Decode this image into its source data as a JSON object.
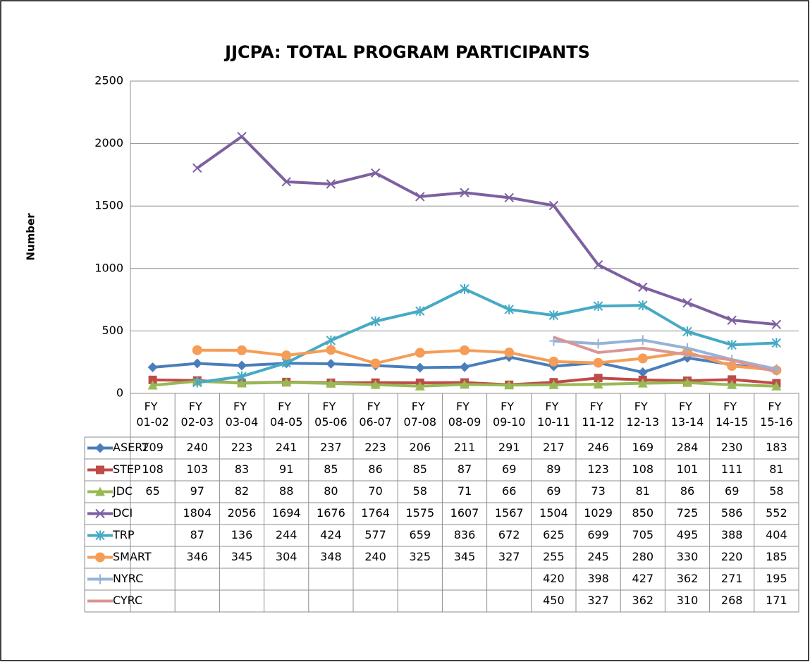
{
  "chart_data": {
    "type": "line",
    "title": "JJCPA: TOTAL PROGRAM PARTICIPANTS",
    "y_label": "Number",
    "categories": [
      "FY 01-02",
      "FY 02-03",
      "FY 03-04",
      "FY 04-05",
      "FY 05-06",
      "FY 06-07",
      "FY 07-08",
      "FY 08-09",
      "FY 09-10",
      "FY 10-11",
      "FY 11-12",
      "FY 12-13",
      "FY 13-14",
      "FY 14-15",
      "FY 15-16"
    ],
    "ylim": [
      0,
      2500
    ],
    "yticks": [
      0,
      500,
      1000,
      1500,
      2000,
      2500
    ],
    "grid": true,
    "series": [
      {
        "name": "ASERT",
        "color": "#4a7ebb",
        "marker": "diamond",
        "values": [
          209,
          240,
          223,
          241,
          237,
          223,
          206,
          211,
          291,
          217,
          246,
          169,
          284,
          230,
          183
        ]
      },
      {
        "name": "STEP",
        "color": "#be4b48",
        "marker": "square",
        "values": [
          108,
          103,
          83,
          91,
          85,
          86,
          85,
          87,
          69,
          89,
          123,
          108,
          101,
          111,
          81
        ]
      },
      {
        "name": "JDC",
        "color": "#98b954",
        "marker": "triangle",
        "values": [
          65,
          97,
          82,
          88,
          80,
          70,
          58,
          71,
          66,
          69,
          73,
          81,
          86,
          69,
          58
        ]
      },
      {
        "name": "DCI",
        "color": "#7d60a0",
        "marker": "x",
        "values": [
          null,
          1804,
          2056,
          1694,
          1676,
          1764,
          1575,
          1607,
          1567,
          1504,
          1029,
          850,
          725,
          586,
          552
        ]
      },
      {
        "name": "TRP",
        "color": "#46aac5",
        "marker": "star",
        "values": [
          null,
          87,
          136,
          244,
          424,
          577,
          659,
          836,
          672,
          625,
          699,
          705,
          495,
          388,
          404
        ]
      },
      {
        "name": "SMART",
        "color": "#f59d56",
        "marker": "circle",
        "values": [
          null,
          346,
          345,
          304,
          348,
          240,
          325,
          345,
          327,
          255,
          245,
          280,
          330,
          220,
          185
        ]
      },
      {
        "name": "NYRC",
        "color": "#95b3d7",
        "marker": "plus",
        "values": [
          null,
          null,
          null,
          null,
          null,
          null,
          null,
          null,
          null,
          420,
          398,
          427,
          362,
          271,
          195
        ]
      },
      {
        "name": "CYRC",
        "color": "#d99694",
        "values": [
          null,
          null,
          null,
          null,
          null,
          null,
          null,
          null,
          null,
          450,
          327,
          362,
          310,
          268,
          171
        ]
      }
    ]
  }
}
